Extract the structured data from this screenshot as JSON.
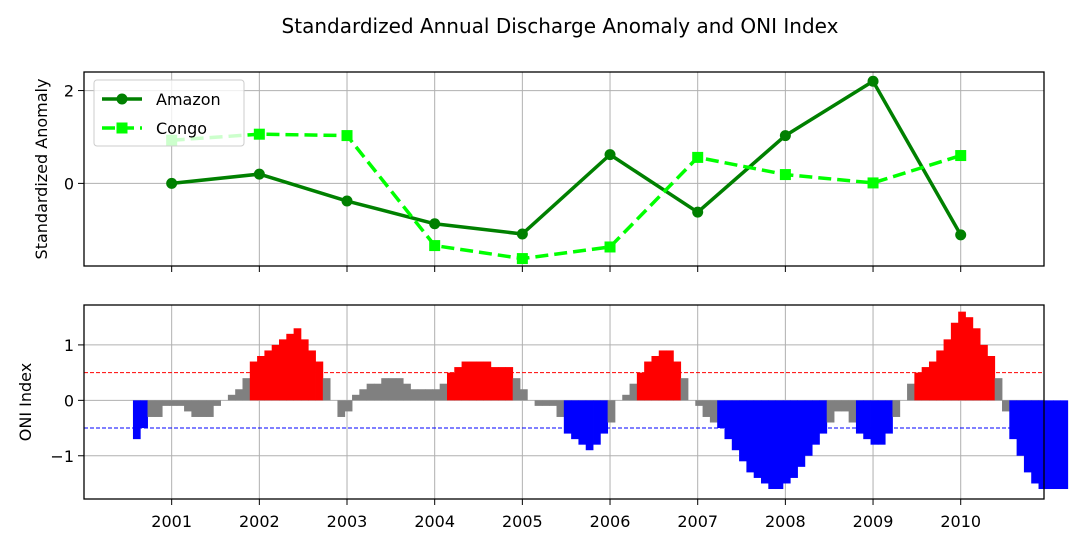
{
  "chart_data": [
    {
      "type": "line",
      "title": "Standardized Annual Discharge Anomaly and ONI Index",
      "xlabel": "",
      "ylabel": "Standardized Anomaly",
      "x": [
        2001,
        2002,
        2003,
        2004,
        2005,
        2006,
        2007,
        2008,
        2009,
        2010
      ],
      "xlim": [
        2000.0,
        2010.95
      ],
      "ylim": [
        -1.78,
        2.4
      ],
      "yticks": [
        "0",
        "2"
      ],
      "grid": true,
      "legend_position": "upper-left",
      "series": [
        {
          "name": "Amazon",
          "color": "#008000",
          "style": "solid",
          "marker": "circle",
          "values": [
            0.0,
            0.2,
            -0.38,
            -0.87,
            -1.09,
            0.62,
            -0.62,
            1.03,
            2.2,
            -1.11
          ]
        },
        {
          "name": "Congo",
          "color": "#00ff00",
          "style": "dashed",
          "marker": "square",
          "values": [
            0.93,
            1.06,
            1.03,
            -1.34,
            -1.62,
            -1.37,
            0.56,
            0.19,
            0.01,
            0.6
          ]
        }
      ]
    },
    {
      "type": "bar",
      "ylabel": "ONI Index",
      "xlabel": "",
      "x_start": 2000.6,
      "month_step": 0.0833,
      "xlim": [
        2000.0,
        2010.95
      ],
      "ylim": [
        -1.78,
        1.72
      ],
      "yticks": [
        "−1",
        "0",
        "1"
      ],
      "xticks": [
        "2001",
        "2002",
        "2003",
        "2004",
        "2005",
        "2006",
        "2007",
        "2008",
        "2009",
        "2010"
      ],
      "thresholds": [
        {
          "value": 0.5,
          "color": "#ff0000"
        },
        {
          "value": -0.5,
          "color": "#0000ff"
        }
      ],
      "colors": {
        "positive": "#ff0000",
        "negative": "#0000ff",
        "neutral": "#808080"
      },
      "grid": true,
      "values": [
        -0.7,
        -0.5,
        -0.3,
        -0.3,
        -0.1,
        -0.1,
        -0.1,
        -0.2,
        -0.3,
        -0.3,
        -0.3,
        -0.1,
        0.0,
        0.1,
        0.2,
        0.4,
        0.7,
        0.8,
        0.9,
        1.0,
        1.1,
        1.2,
        1.3,
        1.1,
        0.9,
        0.7,
        0.4,
        0.0,
        -0.3,
        -0.2,
        0.1,
        0.2,
        0.3,
        0.3,
        0.4,
        0.4,
        0.4,
        0.3,
        0.2,
        0.2,
        0.2,
        0.2,
        0.3,
        0.5,
        0.6,
        0.7,
        0.7,
        0.7,
        0.7,
        0.6,
        0.6,
        0.6,
        0.4,
        0.2,
        0.0,
        -0.1,
        -0.1,
        -0.1,
        -0.3,
        -0.6,
        -0.7,
        -0.8,
        -0.9,
        -0.8,
        -0.6,
        -0.4,
        0.0,
        0.1,
        0.3,
        0.5,
        0.7,
        0.8,
        0.9,
        0.9,
        0.7,
        0.4,
        0.0,
        -0.1,
        -0.3,
        -0.4,
        -0.5,
        -0.7,
        -0.9,
        -1.1,
        -1.3,
        -1.4,
        -1.5,
        -1.6,
        -1.6,
        -1.5,
        -1.4,
        -1.2,
        -1.0,
        -0.8,
        -0.6,
        -0.4,
        -0.2,
        -0.2,
        -0.4,
        -0.6,
        -0.7,
        -0.8,
        -0.8,
        -0.6,
        -0.3,
        0.0,
        0.3,
        0.5,
        0.6,
        0.7,
        0.9,
        1.1,
        1.4,
        1.6,
        1.5,
        1.3,
        1.0,
        0.8,
        0.4,
        -0.2,
        -0.7,
        -1.0,
        -1.3,
        -1.5,
        -1.6,
        -1.6,
        -1.6,
        -1.6
      ]
    }
  ]
}
